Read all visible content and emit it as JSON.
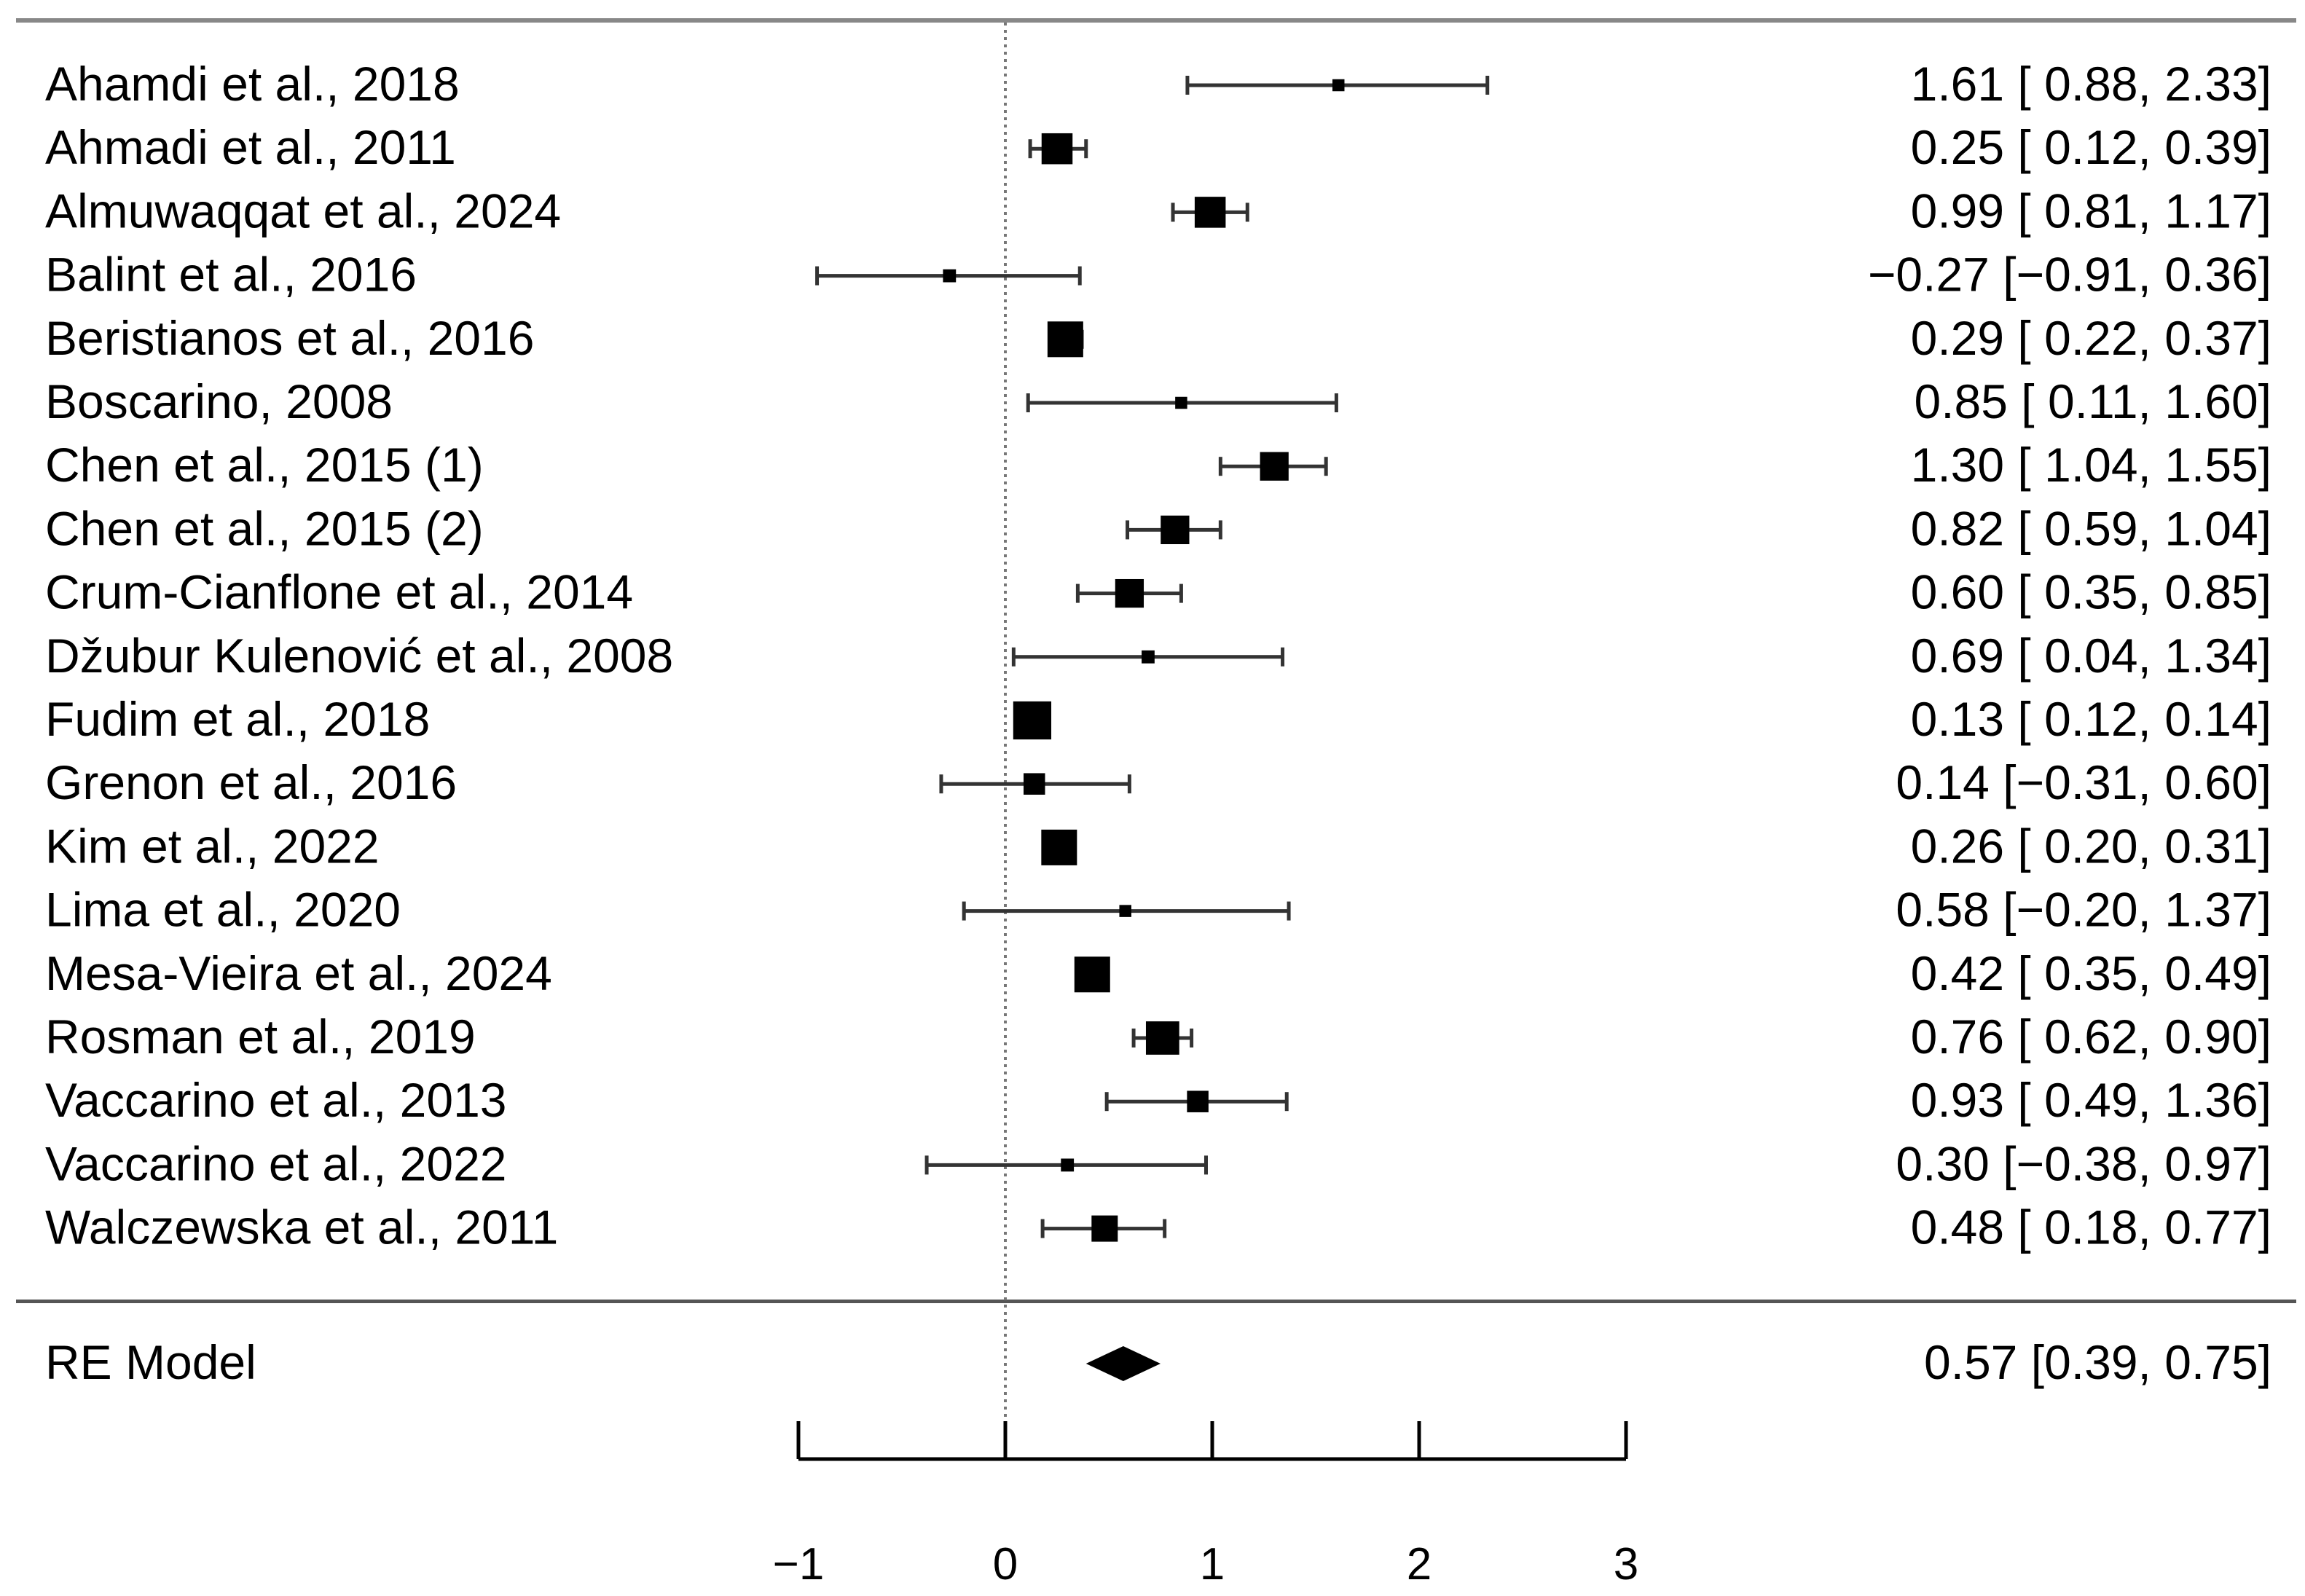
{
  "chart_data": {
    "type": "forest",
    "title": "",
    "xlabel": "",
    "ylabel": "",
    "xlim": [
      -1,
      3
    ],
    "xticks": [
      -1,
      0,
      1,
      2,
      3
    ],
    "xtick_labels": [
      "−1",
      "0",
      "1",
      "2",
      "3"
    ],
    "reference_line": 0,
    "studies": [
      {
        "label": "Ahamdi et al., 2018",
        "estimate": 1.61,
        "lower": 0.88,
        "upper": 2.33,
        "weight": 1,
        "display": "1.61 [ 0.88, 2.33]"
      },
      {
        "label": "Ahmadi et al., 2011",
        "estimate": 0.25,
        "lower": 0.12,
        "upper": 0.39,
        "weight": 5,
        "display": "0.25 [ 0.12, 0.39]"
      },
      {
        "label": "Almuwaqqat et al., 2024",
        "estimate": 0.99,
        "lower": 0.81,
        "upper": 1.17,
        "weight": 5,
        "display": "0.99 [ 0.81, 1.17]"
      },
      {
        "label": "Balint et al., 2016",
        "estimate": -0.27,
        "lower": -0.91,
        "upper": 0.36,
        "weight": 1.2,
        "display": "−0.27 [−0.91, 0.36]"
      },
      {
        "label": "Beristianos et al., 2016",
        "estimate": 0.29,
        "lower": 0.22,
        "upper": 0.37,
        "weight": 6,
        "display": "0.29 [ 0.22, 0.37]"
      },
      {
        "label": "Boscarino, 2008",
        "estimate": 0.85,
        "lower": 0.11,
        "upper": 1.6,
        "weight": 1,
        "display": "0.85 [ 0.11, 1.60]"
      },
      {
        "label": "Chen et al., 2015 (1)",
        "estimate": 1.3,
        "lower": 1.04,
        "upper": 1.55,
        "weight": 4.5,
        "display": "1.30 [ 1.04, 1.55]"
      },
      {
        "label": "Chen et al., 2015 (2)",
        "estimate": 0.82,
        "lower": 0.59,
        "upper": 1.04,
        "weight": 4.5,
        "display": "0.82 [ 0.59, 1.04]"
      },
      {
        "label": "Crum-Cianflone et al., 2014",
        "estimate": 0.6,
        "lower": 0.35,
        "upper": 0.85,
        "weight": 4.5,
        "display": "0.60 [ 0.35, 0.85]"
      },
      {
        "label": "Džubur Kulenović et al., 2008",
        "estimate": 0.69,
        "lower": 0.04,
        "upper": 1.34,
        "weight": 1.2,
        "display": "0.69 [ 0.04, 1.34]"
      },
      {
        "label": "Fudim et al., 2018",
        "estimate": 0.13,
        "lower": 0.12,
        "upper": 0.14,
        "weight": 6.5,
        "display": "0.13 [ 0.12, 0.14]"
      },
      {
        "label": "Grenon et al., 2016",
        "estimate": 0.14,
        "lower": -0.31,
        "upper": 0.6,
        "weight": 3,
        "display": "0.14 [−0.31, 0.60]"
      },
      {
        "label": "Kim et al., 2022",
        "estimate": 0.26,
        "lower": 0.2,
        "upper": 0.31,
        "weight": 6,
        "display": "0.26 [ 0.20, 0.31]"
      },
      {
        "label": "Lima et al., 2020",
        "estimate": 0.58,
        "lower": -0.2,
        "upper": 1.37,
        "weight": 1,
        "display": "0.58 [−0.20, 1.37]"
      },
      {
        "label": "Mesa-Vieira et al., 2024",
        "estimate": 0.42,
        "lower": 0.35,
        "upper": 0.49,
        "weight": 6,
        "display": "0.42 [ 0.35, 0.49]"
      },
      {
        "label": "Rosman et al., 2019",
        "estimate": 0.76,
        "lower": 0.62,
        "upper": 0.9,
        "weight": 5.5,
        "display": "0.76 [ 0.62, 0.90]"
      },
      {
        "label": "Vaccarino et al., 2013",
        "estimate": 0.93,
        "lower": 0.49,
        "upper": 1.36,
        "weight": 3,
        "display": "0.93 [ 0.49, 1.36]"
      },
      {
        "label": "Vaccarino et al., 2022",
        "estimate": 0.3,
        "lower": -0.38,
        "upper": 0.97,
        "weight": 1.2,
        "display": "0.30 [−0.38, 0.97]"
      },
      {
        "label": "Walczewska et al., 2011",
        "estimate": 0.48,
        "lower": 0.18,
        "upper": 0.77,
        "weight": 4,
        "display": "0.48 [ 0.18, 0.77]"
      }
    ],
    "summary": {
      "label": "RE Model",
      "estimate": 0.57,
      "lower": 0.39,
      "upper": 0.75,
      "display": "0.57 [0.39, 0.75]"
    }
  },
  "colors": {
    "ink": "#000000",
    "top_rule": "#888888",
    "ref_line": "#777777",
    "ci_line": "#333333"
  }
}
